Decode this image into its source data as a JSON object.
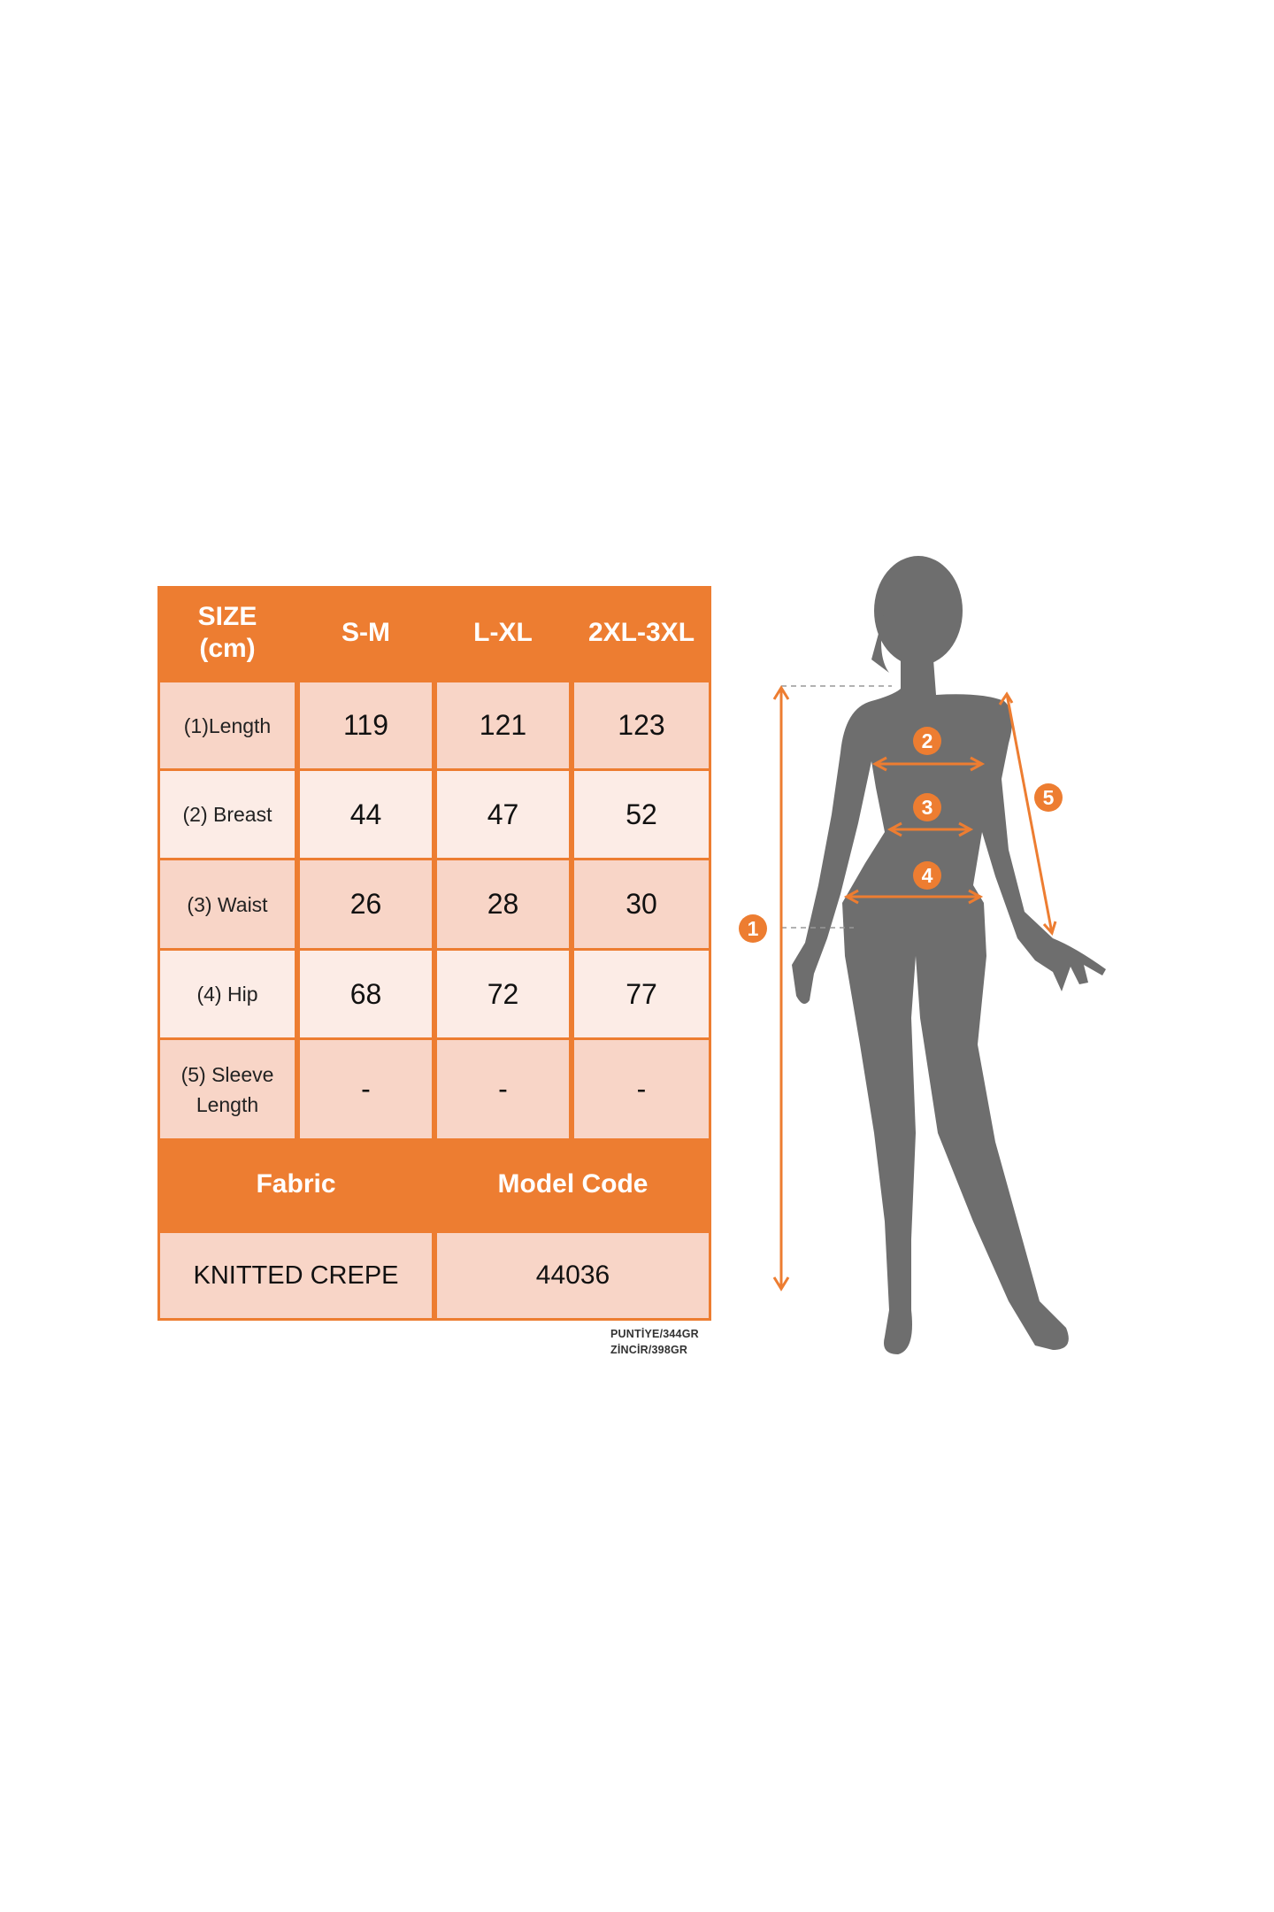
{
  "table": {
    "header": {
      "size_label": "SIZE (cm)",
      "sizes": [
        "S-M",
        "L-XL",
        "2XL-3XL"
      ]
    },
    "rows": [
      {
        "label": "(1)Length",
        "values": [
          "119",
          "121",
          "123"
        ]
      },
      {
        "label": "(2) Breast",
        "values": [
          "44",
          "47",
          "52"
        ]
      },
      {
        "label": "(3) Waist",
        "values": [
          "26",
          "28",
          "30"
        ]
      },
      {
        "label": "(4) Hip",
        "values": [
          "68",
          "72",
          "77"
        ]
      },
      {
        "label": "(5) Sleeve Length",
        "values": [
          "-",
          "-",
          "-"
        ]
      }
    ],
    "footer_headers": {
      "fabric": "Fabric",
      "model_code": "Model Code"
    },
    "footer_values": {
      "fabric": "KNITTED CREPE",
      "model_code": "44036"
    }
  },
  "notes": [
    "PUNTİYE/344GR",
    "ZİNCİR/398GR"
  ],
  "figure": {
    "badges": [
      "1",
      "2",
      "3",
      "4",
      "5"
    ]
  },
  "colors": {
    "accent": "#ED7D31",
    "cell_dark": "#F8D5C7",
    "cell_light": "#FCECE6",
    "silhouette": "#6E6E6E"
  }
}
